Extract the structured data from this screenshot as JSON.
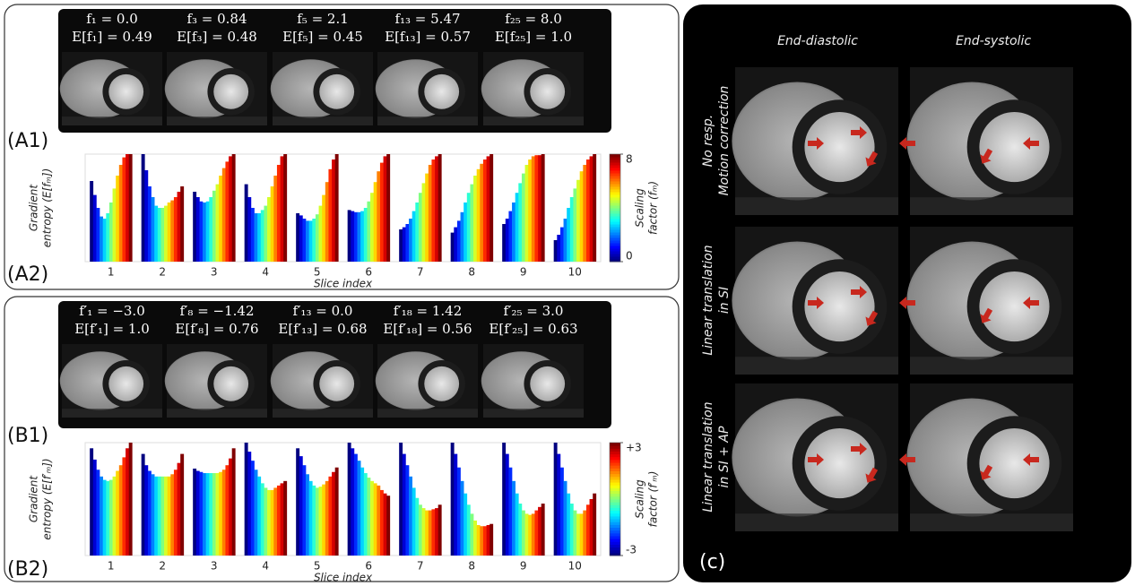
{
  "panel_a": {
    "label_a1": "(A1)",
    "label_a2": "(A2)",
    "images": [
      {
        "f": "f₁ = 0.0",
        "e": "E[f₁] = 0.49"
      },
      {
        "f": "f₃ = 0.84",
        "e": "E[f₃] = 0.48"
      },
      {
        "f": "f₅ = 2.1",
        "e": "E[f₅] = 0.45"
      },
      {
        "f": "f₁₃ = 5.47",
        "e": "E[f₁₃] = 0.57"
      },
      {
        "f": "f₂₅ = 8.0",
        "e": "E[f₂₅] = 1.0"
      }
    ],
    "plot": {
      "y_label": [
        "Gradient",
        "entropy (E[fₘ])"
      ],
      "x_label": "Slice index",
      "colorbar_label": [
        "Scaling",
        "factor (fₘ)"
      ],
      "clim": [
        0,
        8
      ],
      "colorbar_ticks": [
        0,
        8
      ],
      "ylim": [
        0,
        1
      ],
      "slices": [
        {
          "label": "1",
          "values": [
            0.75,
            0.62,
            0.5,
            0.42,
            0.4,
            0.45,
            0.55,
            0.68,
            0.8,
            0.9,
            0.97,
            1.0,
            1.0
          ]
        },
        {
          "label": "2",
          "values": [
            1.0,
            0.85,
            0.7,
            0.6,
            0.52,
            0.5,
            0.5,
            0.52,
            0.55,
            0.57,
            0.6,
            0.65,
            0.7
          ]
        },
        {
          "label": "3",
          "values": [
            0.65,
            0.6,
            0.56,
            0.55,
            0.56,
            0.6,
            0.66,
            0.72,
            0.8,
            0.87,
            0.93,
            0.98,
            1.0
          ]
        },
        {
          "label": "4",
          "values": [
            0.72,
            0.6,
            0.5,
            0.45,
            0.45,
            0.48,
            0.52,
            0.6,
            0.7,
            0.8,
            0.9,
            0.98,
            1.0
          ]
        },
        {
          "label": "5",
          "values": [
            0.45,
            0.43,
            0.4,
            0.38,
            0.38,
            0.4,
            0.44,
            0.52,
            0.62,
            0.74,
            0.86,
            0.95,
            1.0
          ]
        },
        {
          "label": "6",
          "values": [
            0.48,
            0.47,
            0.46,
            0.46,
            0.47,
            0.5,
            0.56,
            0.64,
            0.74,
            0.84,
            0.92,
            0.98,
            1.0
          ]
        },
        {
          "label": "7",
          "values": [
            0.3,
            0.32,
            0.35,
            0.4,
            0.47,
            0.55,
            0.64,
            0.73,
            0.82,
            0.9,
            0.95,
            0.98,
            1.0
          ]
        },
        {
          "label": "8",
          "values": [
            0.27,
            0.32,
            0.38,
            0.46,
            0.55,
            0.64,
            0.72,
            0.8,
            0.86,
            0.91,
            0.95,
            0.98,
            1.0
          ]
        },
        {
          "label": "9",
          "values": [
            0.35,
            0.4,
            0.47,
            0.55,
            0.64,
            0.73,
            0.82,
            0.9,
            0.95,
            0.98,
            0.99,
            0.99,
            1.0
          ]
        },
        {
          "label": "10",
          "values": [
            0.2,
            0.25,
            0.32,
            0.4,
            0.5,
            0.6,
            0.68,
            0.76,
            0.84,
            0.9,
            0.95,
            0.98,
            1.0
          ]
        }
      ]
    }
  },
  "panel_b": {
    "label_b1": "(B1)",
    "label_b2": "(B2)",
    "images": [
      {
        "f": "f′₁ = −3.0",
        "e": "E[f′₁] = 1.0"
      },
      {
        "f": "f′₈ = −1.42",
        "e": "E[f′₈] = 0.76"
      },
      {
        "f": "f′₁₃ = 0.0",
        "e": "E[f′₁₃] = 0.68"
      },
      {
        "f": "f′₁₈ = 1.42",
        "e": "E[f′₁₈] = 0.56"
      },
      {
        "f": "f′₂₅ = 3.0",
        "e": "E[f′₂₅] = 0.63"
      }
    ],
    "plot": {
      "y_label": [
        "Gradient",
        "entropy (E[f′ₘ])"
      ],
      "x_label": "Slice index",
      "colorbar_label": [
        "Scaling",
        "factor (f′ₘ)"
      ],
      "clim": [
        -3,
        3
      ],
      "colorbar_ticks": [
        -3,
        {
          "value": 3,
          "label": "+3"
        }
      ],
      "ylim": [
        0,
        1
      ],
      "slices": [
        {
          "label": "1",
          "values": [
            0.95,
            0.85,
            0.76,
            0.7,
            0.67,
            0.66,
            0.67,
            0.7,
            0.75,
            0.8,
            0.87,
            0.95,
            1.0
          ]
        },
        {
          "label": "2",
          "values": [
            0.9,
            0.8,
            0.75,
            0.72,
            0.7,
            0.7,
            0.7,
            0.7,
            0.7,
            0.72,
            0.76,
            0.82,
            0.9
          ]
        },
        {
          "label": "3",
          "values": [
            0.77,
            0.75,
            0.74,
            0.73,
            0.73,
            0.73,
            0.73,
            0.73,
            0.74,
            0.76,
            0.8,
            0.86,
            0.95
          ]
        },
        {
          "label": "4",
          "values": [
            1.0,
            0.92,
            0.84,
            0.76,
            0.7,
            0.64,
            0.6,
            0.58,
            0.58,
            0.6,
            0.62,
            0.64,
            0.66
          ]
        },
        {
          "label": "5",
          "values": [
            0.95,
            0.88,
            0.8,
            0.72,
            0.66,
            0.62,
            0.6,
            0.61,
            0.63,
            0.66,
            0.7,
            0.74,
            0.78
          ]
        },
        {
          "label": "6",
          "values": [
            1.0,
            0.95,
            0.9,
            0.84,
            0.78,
            0.73,
            0.69,
            0.66,
            0.64,
            0.62,
            0.58,
            0.55,
            0.53
          ]
        },
        {
          "label": "7",
          "values": [
            1.0,
            0.9,
            0.8,
            0.7,
            0.6,
            0.51,
            0.45,
            0.42,
            0.4,
            0.4,
            0.41,
            0.42,
            0.45
          ]
        },
        {
          "label": "8",
          "values": [
            1.0,
            0.9,
            0.78,
            0.66,
            0.55,
            0.45,
            0.37,
            0.31,
            0.27,
            0.26,
            0.26,
            0.27,
            0.28
          ]
        },
        {
          "label": "9",
          "values": [
            1.0,
            0.9,
            0.78,
            0.66,
            0.55,
            0.46,
            0.4,
            0.37,
            0.36,
            0.37,
            0.4,
            0.43,
            0.46
          ]
        },
        {
          "label": "10",
          "values": [
            1.0,
            0.9,
            0.78,
            0.66,
            0.55,
            0.46,
            0.4,
            0.37,
            0.37,
            0.4,
            0.45,
            0.5,
            0.55
          ]
        }
      ]
    }
  },
  "panel_c": {
    "label": "(c)",
    "headers": [
      "End-diastolic",
      "End-systolic"
    ],
    "row_labels": [
      [
        "No resp.",
        "Motion correction"
      ],
      [
        "Linear translation",
        "in SI"
      ],
      [
        "Linear translation",
        "in SI + AP"
      ]
    ]
  }
}
